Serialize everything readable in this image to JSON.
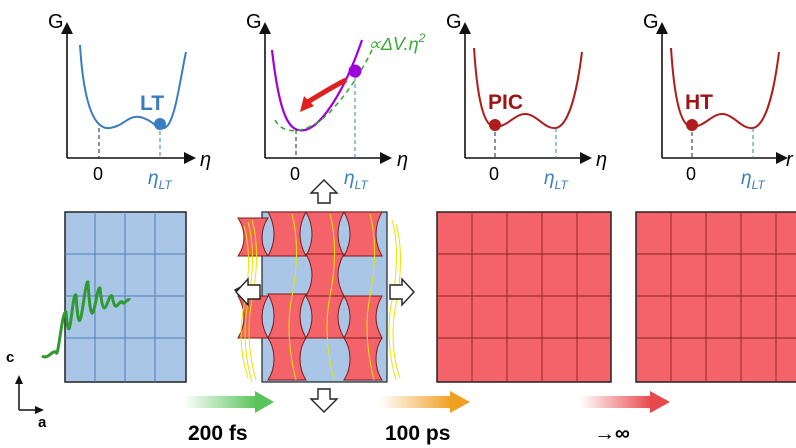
{
  "colors": {
    "lt_blue": "#3a7dbf",
    "lattice_blue": "#a9c6e6",
    "lattice_blue_line": "#4a7fb5",
    "red_curve": "#b01c1c",
    "red_fill": "#f4636a",
    "red_dark": "#9e1313",
    "purple": "#a000dd",
    "green": "#3aaa35",
    "dash_blue": "#3a7dbf",
    "yellow_wave": "#e6e600",
    "arrow_green": "#5bc45b",
    "arrow_orange": "#f0a020",
    "arrow_red": "#e8474c"
  },
  "panels": [
    {
      "g_label": "G",
      "axis_label": "η",
      "zero_label": "0",
      "eta_lt_main": "η",
      "eta_lt_sub": "LT",
      "state_label": "LT"
    },
    {
      "g_label": "G",
      "axis_label": "η",
      "zero_label": "0",
      "eta_lt_main": "η",
      "eta_lt_sub": "LT",
      "annotation_prefix": "∝ΔV.η",
      "annotation_sup": "2"
    },
    {
      "g_label": "G",
      "axis_label": "η",
      "zero_label": "0",
      "eta_lt_main": "η",
      "eta_lt_sub": "LT",
      "state_label": "PIC"
    },
    {
      "g_label": "G",
      "axis_label": "r",
      "zero_label": "0",
      "eta_lt_main": "η",
      "eta_lt_sub": "LT",
      "state_label": "HT"
    }
  ],
  "time_steps": [
    {
      "label": "200 fs"
    },
    {
      "label": "100 ps"
    },
    {
      "label": "→∞"
    }
  ],
  "axes_indicator": {
    "c_label": "c",
    "a_label": "a"
  },
  "icons": [
    "expansion-arrow-icon",
    "laser-pulse-icon",
    "strain-wave-icon",
    "time-arrow-icon"
  ]
}
